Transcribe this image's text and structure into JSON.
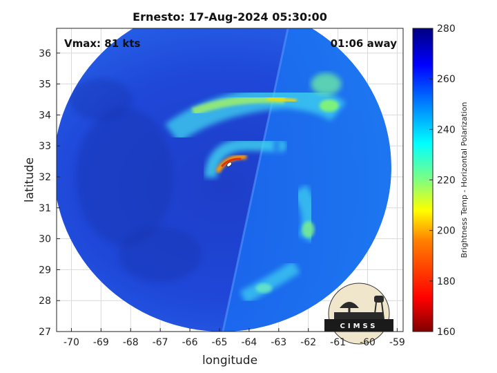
{
  "title": "Ernesto: 17-Aug-2024 05:30:00",
  "annotations": {
    "vmax": "Vmax: 81 kts",
    "time_away": "01:06 away"
  },
  "logo": {
    "text": "CIMSS"
  },
  "chart_data": {
    "type": "heatmap",
    "title": "Ernesto: 17-Aug-2024 05:30:00",
    "xlabel": "longitude",
    "ylabel": "latitude",
    "xlim": [
      -70.5,
      -58.8
    ],
    "ylim": [
      27,
      36.8
    ],
    "x_ticks": [
      -70,
      -69,
      -68,
      -67,
      -66,
      -65,
      -64,
      -63,
      -62,
      -61,
      -60,
      -59
    ],
    "y_ticks": [
      27,
      28,
      29,
      30,
      31,
      32,
      33,
      34,
      35,
      36
    ],
    "x_tick_labels": [
      "-70",
      "-69",
      "-68",
      "-67",
      "-66",
      "-65",
      "-64",
      "-63",
      "-62",
      "-61",
      "-60",
      "-59"
    ],
    "y_tick_labels": [
      "27",
      "28",
      "29",
      "30",
      "31",
      "32",
      "33",
      "34",
      "35",
      "36"
    ],
    "grid": true,
    "colorbar": {
      "label": "Brightness Temp - Horizontal Polarization",
      "range": [
        160,
        280
      ],
      "ticks": [
        160,
        180,
        200,
        220,
        240,
        260,
        280
      ],
      "tick_labels": [
        "160",
        "180",
        "200",
        "220",
        "240",
        "260",
        "280"
      ],
      "colormap": "jet",
      "colors": [
        "#800000",
        "#ff0000",
        "#ff8000",
        "#ffff00",
        "#80ff80",
        "#00ffff",
        "#0080ff",
        "#0000ff",
        "#000080"
      ]
    },
    "swath_center": [
      -64.9,
      32.3
    ],
    "storm_center": [
      -64.6,
      32.2
    ],
    "features": [
      {
        "name": "eyewall",
        "lon": -64.7,
        "lat": 32.5,
        "value": 195
      },
      {
        "name": "north rainband",
        "lon": -63.0,
        "lat": 34.5,
        "value": 205
      },
      {
        "name": "northeast band",
        "lon": -61.5,
        "lat": 34.9,
        "value": 225
      },
      {
        "name": "south rainband",
        "lon": -62.0,
        "lat": 30.5,
        "value": 225
      },
      {
        "name": "far south band",
        "lon": -63.5,
        "lat": 28.5,
        "value": 230
      }
    ]
  }
}
